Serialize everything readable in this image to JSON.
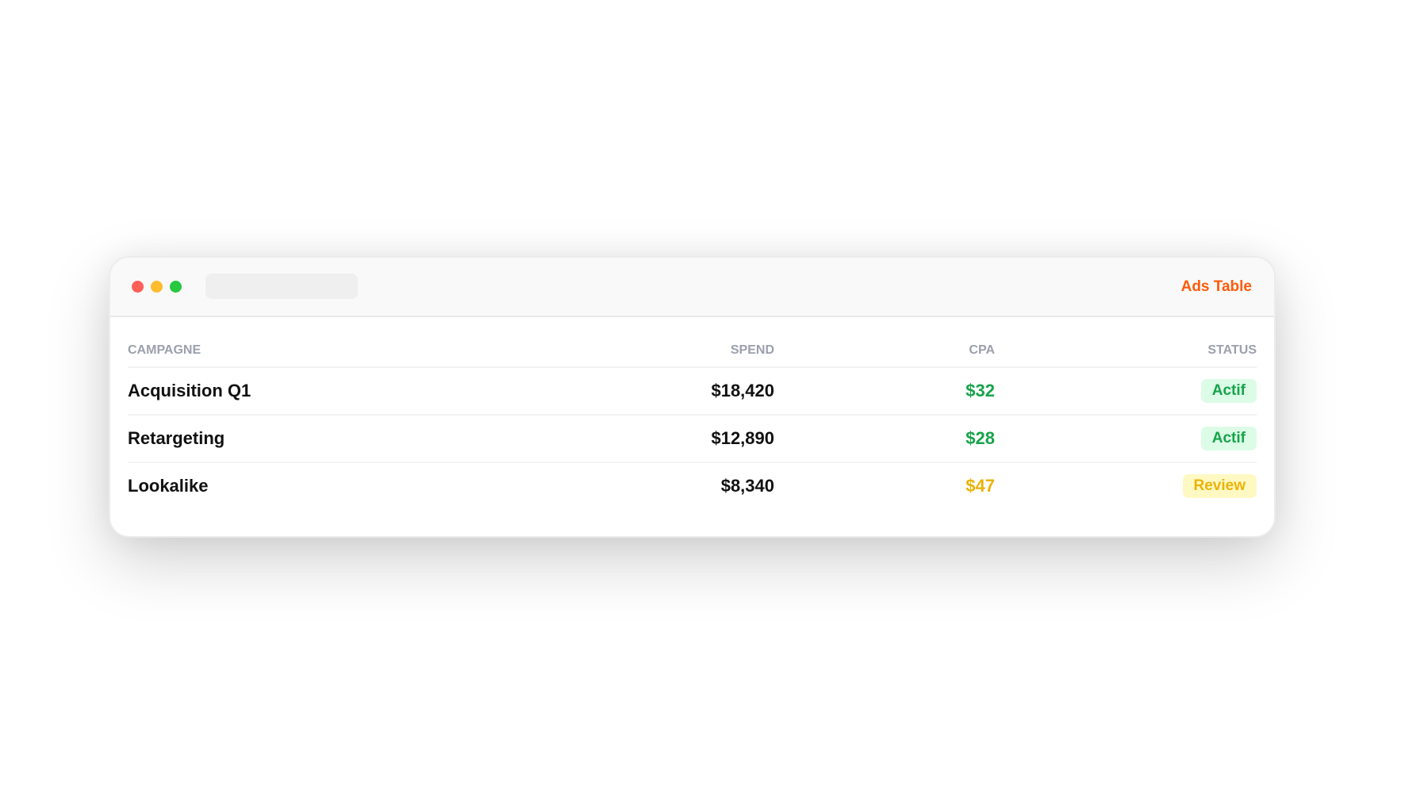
{
  "window": {
    "title": "Ads Table"
  },
  "table": {
    "headers": [
      "CAMPAGNE",
      "SPEND",
      "CPA",
      "STATUS"
    ],
    "rows": [
      {
        "campaign": "Acquisition Q1",
        "spend": "$18,420",
        "cpa": "$32",
        "cpa_color": "#17a34a",
        "status": "Actif",
        "status_color": "#17a34a",
        "status_bg": "#dcfce7"
      },
      {
        "campaign": "Retargeting",
        "spend": "$12,890",
        "cpa": "$28",
        "cpa_color": "#17a34a",
        "status": "Actif",
        "status_color": "#17a34a",
        "status_bg": "#dcfce7"
      },
      {
        "campaign": "Lookalike",
        "spend": "$8,340",
        "cpa": "$47",
        "cpa_color": "#eab308",
        "status": "Review",
        "status_color": "#eab308",
        "status_bg": "#fef9c3"
      }
    ]
  },
  "colors": {
    "accent": "#ff5a0a",
    "close": "#ff5f57",
    "minimize": "#febc2e",
    "maximize": "#28c840"
  }
}
